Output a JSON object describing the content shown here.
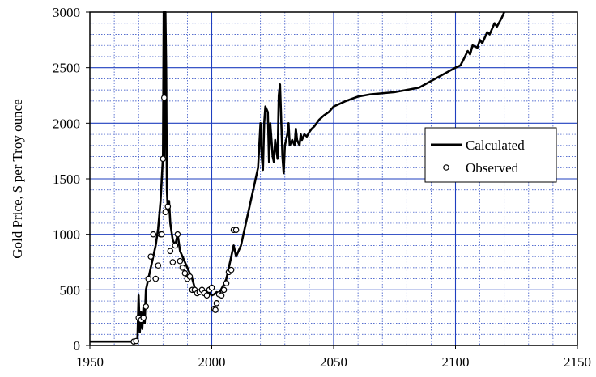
{
  "chart_data": {
    "type": "line",
    "title": "",
    "xlabel": "",
    "ylabel": "Gold Price, $ per Troy ounce",
    "xlim": [
      1950,
      2150
    ],
    "ylim": [
      0,
      3000
    ],
    "x_ticks": [
      1950,
      2000,
      2050,
      2100,
      2150
    ],
    "y_ticks": [
      0,
      500,
      1000,
      1500,
      2000,
      2500,
      3000
    ],
    "x_tick_labels": [
      "1950",
      "2000",
      "2050",
      "2100",
      "2150"
    ],
    "y_tick_labels": [
      "0",
      "500",
      "1000",
      "1500",
      "2000",
      "2500",
      "3000"
    ],
    "grid": true,
    "legend_position": "right",
    "colors": {
      "grid": "#1f3fbf",
      "series": "#000000"
    },
    "series": [
      {
        "name": "Calculated",
        "kind": "line",
        "x": [
          1950,
          1968,
          1969.5,
          1970,
          1970.5,
          1971,
          1971.5,
          1972,
          1972.5,
          1973,
          1974,
          1975,
          1976,
          1977,
          1978,
          1979,
          1980,
          1980.3,
          1980.6,
          1981,
          1981.3,
          1981.6,
          1982,
          1982.5,
          1983,
          1984,
          1985,
          1986,
          1987,
          1988,
          1989,
          1990,
          1991,
          1992,
          1993,
          1994,
          1995,
          1996,
          1997,
          1998,
          1999,
          2000,
          2001,
          2002,
          2003,
          2004,
          2005,
          2006,
          2007,
          2008,
          2009,
          2010,
          2011,
          2012,
          2014,
          2016,
          2018,
          2019,
          2020,
          2020.5,
          2021,
          2021.5,
          2022,
          2023,
          2023.5,
          2024,
          2025,
          2025.5,
          2026,
          2027,
          2027.5,
          2028,
          2029,
          2029.5,
          2030,
          2031,
          2031.5,
          2032,
          2033,
          2034,
          2034.5,
          2035,
          2036,
          2036.5,
          2037,
          2038,
          2039,
          2040,
          2041,
          2042,
          2043,
          2044,
          2045,
          2046,
          2048,
          2050,
          2055,
          2060,
          2065,
          2070,
          2075,
          2080,
          2085,
          2090,
          2095,
          2100,
          2102,
          2103,
          2105,
          2106,
          2107,
          2109,
          2110,
          2111,
          2113,
          2114,
          2115,
          2116,
          2117,
          2119,
          2120
        ],
        "y": [
          35,
          35,
          40,
          450,
          120,
          300,
          150,
          350,
          200,
          500,
          600,
          700,
          800,
          900,
          1050,
          1300,
          1700,
          3000,
          1700,
          3000,
          2500,
          1400,
          1200,
          1300,
          1100,
          950,
          900,
          1000,
          850,
          800,
          750,
          700,
          650,
          600,
          520,
          500,
          480,
          490,
          470,
          480,
          470,
          450,
          460,
          480,
          470,
          510,
          550,
          600,
          700,
          800,
          900,
          800,
          850,
          900,
          1100,
          1300,
          1500,
          1600,
          2000,
          1700,
          1580,
          2000,
          2150,
          2100,
          1650,
          2000,
          1700,
          1650,
          1850,
          1680,
          2250,
          2350,
          1700,
          1550,
          1800,
          1900,
          2000,
          1800,
          1850,
          1800,
          1950,
          1850,
          1800,
          1900,
          1850,
          1900,
          1880,
          1920,
          1950,
          1970,
          2000,
          2030,
          2050,
          2070,
          2100,
          2150,
          2200,
          2240,
          2260,
          2270,
          2280,
          2300,
          2320,
          2380,
          2440,
          2500,
          2520,
          2560,
          2650,
          2620,
          2700,
          2680,
          2750,
          2720,
          2820,
          2800,
          2850,
          2900,
          2870,
          2950,
          3000
        ]
      },
      {
        "name": "Observed",
        "kind": "marker",
        "x": [
          1968,
          1969,
          1970,
          1971,
          1972,
          1973,
          1974,
          1975,
          1976,
          1977,
          1978,
          1979,
          1979.5,
          1980,
          1980.5,
          1981,
          1982,
          1983,
          1984,
          1985,
          1986,
          1987,
          1988,
          1989,
          1990,
          1991,
          1992,
          1993,
          1994,
          1995,
          1996,
          1997,
          1998,
          1999,
          2000,
          2001,
          2001.5,
          2002,
          2003,
          2004,
          2005,
          2006,
          2007,
          2008,
          2009,
          2010
        ],
        "y": [
          35,
          40,
          250,
          230,
          250,
          350,
          600,
          800,
          1000,
          600,
          720,
          1000,
          1000,
          1680,
          2230,
          1200,
          1250,
          850,
          750,
          900,
          1000,
          760,
          700,
          650,
          600,
          620,
          500,
          500,
          470,
          480,
          500,
          470,
          450,
          500,
          520,
          330,
          320,
          380,
          460,
          450,
          500,
          560,
          660,
          680,
          1040,
          1040
        ]
      }
    ]
  }
}
